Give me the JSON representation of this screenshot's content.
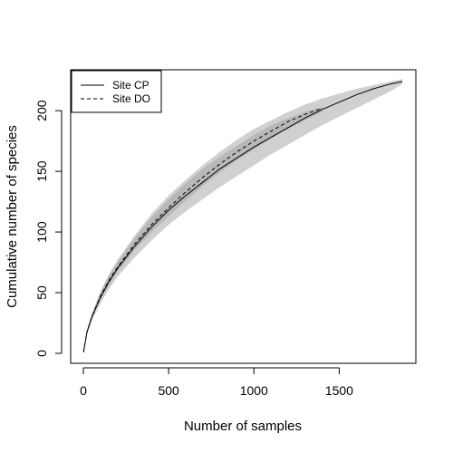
{
  "chart_data": {
    "type": "line",
    "title": "",
    "xlabel": "Number of samples",
    "ylabel": "Cumulative number of species",
    "xlim": [
      0,
      1880
    ],
    "ylim": [
      0,
      225
    ],
    "xticks": [
      0,
      500,
      1000,
      1500
    ],
    "yticks": [
      0,
      50,
      100,
      150,
      200
    ],
    "grid": false,
    "legend_position": "top-left",
    "series": [
      {
        "name": "Site CP",
        "line_style": "solid",
        "color": "#000000",
        "band_color": "#c8c8c8",
        "x": [
          1,
          20,
          50,
          100,
          150,
          200,
          300,
          400,
          500,
          600,
          700,
          800,
          900,
          1000,
          1100,
          1200,
          1300,
          1400,
          1500,
          1600,
          1700,
          1800,
          1870
        ],
        "y": [
          1,
          17,
          30,
          46,
          59,
          70,
          88,
          104,
          118,
          130,
          141,
          152,
          161,
          170,
          178,
          186,
          194,
          201,
          207,
          213,
          218,
          222,
          224
        ],
        "lower": [
          1,
          15,
          27,
          41,
          53,
          63,
          79,
          93,
          106,
          117,
          127,
          137,
          146,
          155,
          164,
          172,
          180,
          188,
          195,
          202,
          209,
          216,
          222
        ],
        "upper": [
          1,
          19,
          33,
          51,
          65,
          77,
          97,
          115,
          130,
          143,
          155,
          166,
          176,
          185,
          192,
          199,
          205,
          210,
          214,
          218,
          221,
          224,
          226
        ]
      },
      {
        "name": "Site DO",
        "line_style": "dashed",
        "color": "#000000",
        "band_color": "#a8a8a8",
        "x": [
          1,
          20,
          50,
          100,
          150,
          200,
          300,
          400,
          500,
          600,
          700,
          800,
          900,
          1000,
          1100,
          1200,
          1300,
          1400
        ],
        "y": [
          1,
          17,
          30,
          47,
          60,
          71,
          90,
          106,
          120,
          133,
          145,
          156,
          166,
          175,
          183,
          191,
          197,
          202
        ],
        "lower": [
          1,
          16,
          28,
          44,
          56,
          67,
          85,
          100,
          113,
          126,
          138,
          149,
          159,
          168,
          177,
          185,
          192,
          199
        ],
        "upper": [
          1,
          18,
          32,
          50,
          64,
          75,
          95,
          112,
          127,
          140,
          152,
          162,
          171,
          180,
          188,
          194,
          199,
          203
        ]
      }
    ]
  }
}
